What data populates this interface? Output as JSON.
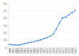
{
  "chart_data": {
    "type": "line",
    "categories": [
      "2000",
      "2001",
      "2002",
      "2003",
      "2004",
      "2005",
      "2006",
      "2007",
      "2008",
      "2009",
      "2010",
      "2011",
      "2012",
      "2013",
      "2014",
      "2015",
      "2016",
      "2017",
      "2018",
      "2019",
      "2020",
      "2021"
    ],
    "values": [
      4,
      3.5,
      3,
      3.2,
      4,
      5,
      6,
      7,
      8,
      9,
      10,
      12,
      13,
      15,
      18,
      25,
      33,
      40,
      41,
      44,
      47,
      50
    ],
    "color": "#2876dd",
    "marker": "circle",
    "ylim": [
      0,
      60
    ],
    "yticks": [
      0,
      10,
      20,
      30,
      40,
      50,
      60
    ],
    "grid": true
  }
}
